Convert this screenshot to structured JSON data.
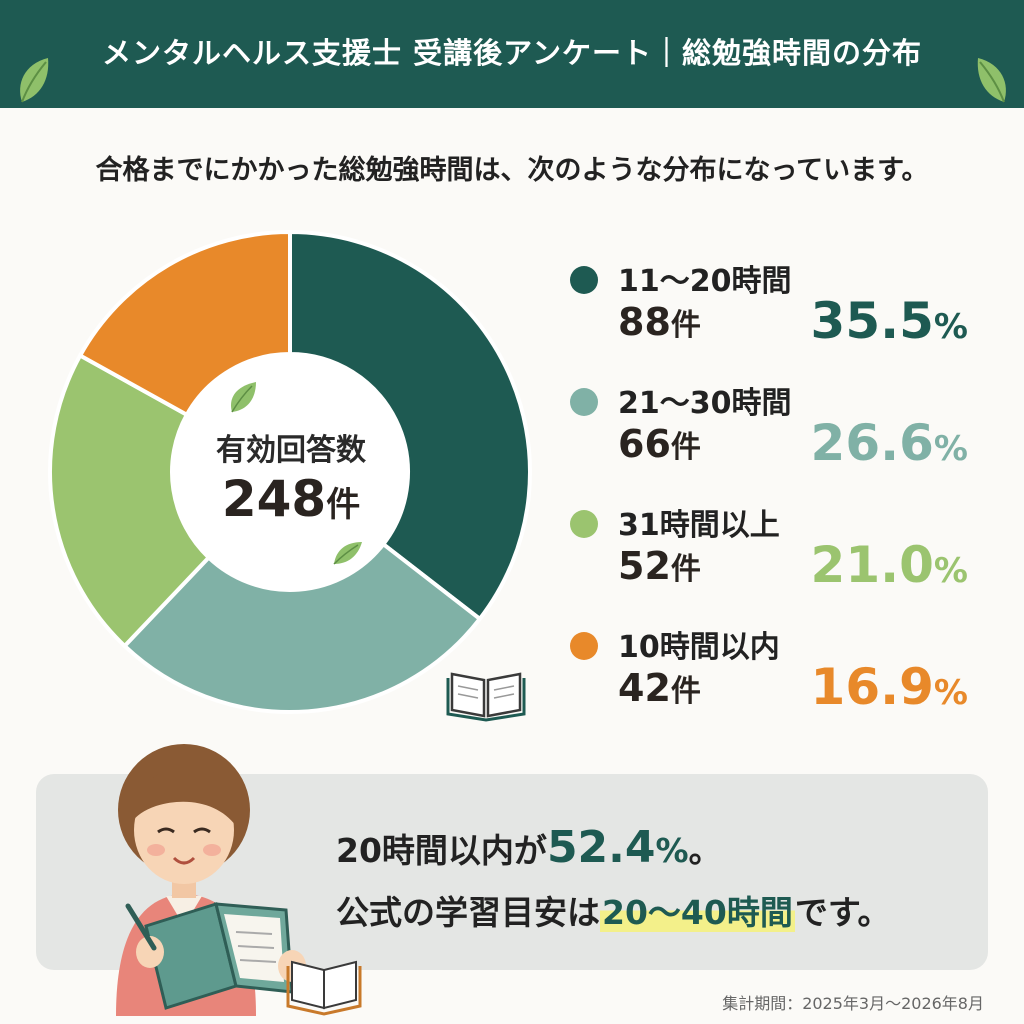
{
  "header": {
    "title": "メンタルヘルス支援士 受講後アンケート｜総勉強時間の分布"
  },
  "subtitle": "合格までにかかった総勉強時間は、次のような分布になっています。",
  "center": {
    "label": "有効回答数",
    "count": "248",
    "unit": "件"
  },
  "colors": {
    "header": "#1e5a52",
    "s1": "#1e5a52",
    "s2": "#80b1a6",
    "s3": "#9bc46f",
    "s4": "#e8892a",
    "highlight": "#f3f08a"
  },
  "chart_data": {
    "type": "pie",
    "title": "",
    "total": 248,
    "slices": [
      {
        "label": "11〜20時間",
        "count": 88,
        "percent": 35.5,
        "color": "#1e5a52"
      },
      {
        "label": "21〜30時間",
        "count": 66,
        "percent": 26.6,
        "color": "#80b1a6"
      },
      {
        "label": "31時間以上",
        "count": 52,
        "percent": 21.0,
        "color": "#9bc46f"
      },
      {
        "label": "10時間以内",
        "count": 42,
        "percent": 16.9,
        "color": "#e8892a"
      }
    ]
  },
  "legend": [
    {
      "label": "11〜20時間",
      "count": "88",
      "unit": "件",
      "pct": "35.5",
      "pct_unit": "%"
    },
    {
      "label": "21〜30時間",
      "count": "66",
      "unit": "件",
      "pct": "26.6",
      "pct_unit": "%"
    },
    {
      "label": "31時間以上",
      "count": "52",
      "unit": "件",
      "pct": "21.0",
      "pct_unit": "%"
    },
    {
      "label": "10時間以内",
      "count": "42",
      "unit": "件",
      "pct": "16.9",
      "pct_unit": "%"
    }
  ],
  "callout": {
    "line1_pre": "20時間以内が",
    "line1_num": "52.4",
    "line1_unit": "%",
    "line1_post": "。",
    "line2_pre": "公式の学習目安は",
    "line2_hl": "20〜40時間",
    "line2_post": "です。"
  },
  "period": "集計期間：2025年3月〜2026年8月",
  "icons": {
    "header_left": "leaf-icon",
    "header_right": "leaf-icon",
    "book": "open-book-icon",
    "person": "woman-reading-illustration"
  }
}
